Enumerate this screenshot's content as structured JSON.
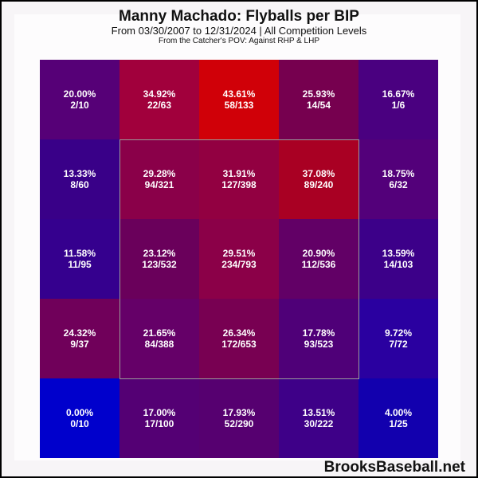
{
  "header": {
    "title": "Manny Machado: Flyballs per BIP",
    "subtitle": "From 03/30/2007 to 12/31/2024 | All Competition Levels",
    "subtitle2": "From the Catcher's POV:   Against RHP & LHP"
  },
  "footer": {
    "brand": "BrooksBaseball.net"
  },
  "cells": [
    {
      "pct": "20.00%",
      "frac": "2/10",
      "color": "#560077"
    },
    {
      "pct": "34.92%",
      "frac": "22/63",
      "color": "#a1003c"
    },
    {
      "pct": "43.61%",
      "frac": "58/133",
      "color": "#d00008"
    },
    {
      "pct": "25.93%",
      "frac": "14/54",
      "color": "#76004f"
    },
    {
      "pct": "16.67%",
      "frac": "1/6",
      "color": "#4a0080"
    },
    {
      "pct": "13.33%",
      "frac": "8/60",
      "color": "#390088"
    },
    {
      "pct": "29.28%",
      "frac": "94/321",
      "color": "#8a0049"
    },
    {
      "pct": "31.91%",
      "frac": "127/398",
      "color": "#920041"
    },
    {
      "pct": "37.08%",
      "frac": "89/240",
      "color": "#a90023"
    },
    {
      "pct": "18.75%",
      "frac": "6/32",
      "color": "#53007a"
    },
    {
      "pct": "11.58%",
      "frac": "11/95",
      "color": "#35008e"
    },
    {
      "pct": "23.12%",
      "frac": "123/532",
      "color": "#6a005b"
    },
    {
      "pct": "29.51%",
      "frac": "234/793",
      "color": "#8b0048"
    },
    {
      "pct": "20.90%",
      "frac": "112/536",
      "color": "#620066"
    },
    {
      "pct": "13.59%",
      "frac": "14/103",
      "color": "#3c0089"
    },
    {
      "pct": "24.32%",
      "frac": "9/37",
      "color": "#70005a"
    },
    {
      "pct": "21.65%",
      "frac": "84/388",
      "color": "#650068"
    },
    {
      "pct": "26.34%",
      "frac": "172/653",
      "color": "#780052"
    },
    {
      "pct": "17.78%",
      "frac": "93/523",
      "color": "#4f0078"
    },
    {
      "pct": "9.72%",
      "frac": "7/72",
      "color": "#2a00a0"
    },
    {
      "pct": "0.00%",
      "frac": "0/10",
      "color": "#0000cc"
    },
    {
      "pct": "17.00%",
      "frac": "17/100",
      "color": "#540074"
    },
    {
      "pct": "17.93%",
      "frac": "52/290",
      "color": "#560070"
    },
    {
      "pct": "13.51%",
      "frac": "30/222",
      "color": "#3e0088"
    },
    {
      "pct": "4.00%",
      "frac": "1/25",
      "color": "#1200ae"
    }
  ],
  "chart_data": {
    "type": "heatmap",
    "title": "Manny Machado: Flyballs per BIP",
    "subtitle": "From 03/30/2007 to 12/31/2024 | All Competition Levels",
    "note": "From the Catcher's POV: Against RHP & LHP",
    "xlabel": "",
    "ylabel": "",
    "rows": 5,
    "cols": 5,
    "strike_zone": {
      "rows": [
        1,
        3
      ],
      "cols": [
        1,
        3
      ]
    },
    "values_pct": [
      [
        20.0,
        34.92,
        43.61,
        25.93,
        16.67
      ],
      [
        13.33,
        29.28,
        31.91,
        37.08,
        18.75
      ],
      [
        11.58,
        23.12,
        29.51,
        20.9,
        13.59
      ],
      [
        24.32,
        21.65,
        26.34,
        17.78,
        9.72
      ],
      [
        0.0,
        17.0,
        17.93,
        13.51,
        4.0
      ]
    ],
    "counts": [
      [
        "2/10",
        "22/63",
        "58/133",
        "14/54",
        "1/6"
      ],
      [
        "8/60",
        "94/321",
        "127/398",
        "89/240",
        "6/32"
      ],
      [
        "11/95",
        "123/532",
        "234/793",
        "112/536",
        "14/103"
      ],
      [
        "9/37",
        "84/388",
        "172/653",
        "93/523",
        "7/72"
      ],
      [
        "0/10",
        "17/100",
        "52/290",
        "30/222",
        "1/25"
      ]
    ],
    "color_scale": {
      "low": "#0000cc",
      "high": "#d00008"
    },
    "watermark": "BrooksBaseball.net"
  }
}
